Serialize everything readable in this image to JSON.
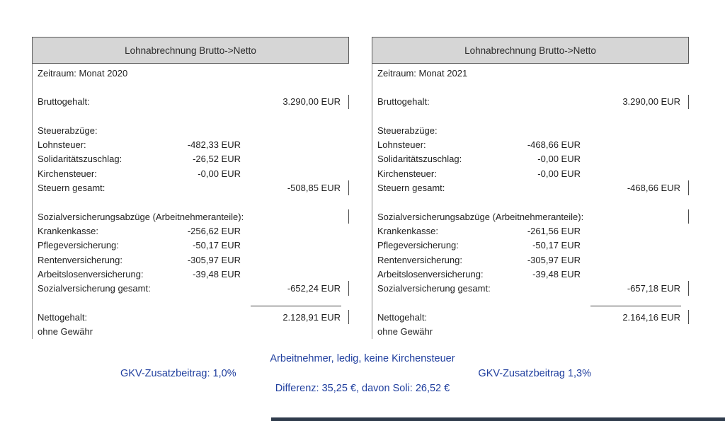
{
  "colors": {
    "accent_blue": "#1f3e9e",
    "header_fill": "#d6d6d6"
  },
  "panels": [
    {
      "title": "Lohnabrechnung Brutto->Netto",
      "rows": [
        {
          "label": "Zeitraum: Monat 2020"
        },
        {},
        {
          "label": "Bruttogehalt:",
          "right": "3.290,00 EUR",
          "tick": true
        },
        {},
        {
          "label": "Steuerabzüge:"
        },
        {
          "label": "Lohnsteuer:",
          "mid": "-482,33 EUR"
        },
        {
          "label": "Solidaritätszuschlag:",
          "mid": "-26,52 EUR"
        },
        {
          "label": "Kirchensteuer:",
          "mid": "-0,00 EUR"
        },
        {
          "label": "Steuern gesamt:",
          "right": "-508,85 EUR",
          "tick": true
        },
        {},
        {
          "label": "Sozialversicherungsabzüge (Arbeitnehmeranteile):",
          "tick": true
        },
        {
          "label": "Krankenkasse:",
          "mid": "-256,62 EUR"
        },
        {
          "label": "Pflegeversicherung:",
          "mid": "-50,17 EUR"
        },
        {
          "label": "Rentenversicherung:",
          "mid": "-305,97 EUR"
        },
        {
          "label": "Arbeitslosenversicherung:",
          "mid": "-39,48 EUR"
        },
        {
          "label": "Sozialversicherung gesamt:",
          "right": "-652,24 EUR",
          "tick": true
        },
        {
          "rule": true
        },
        {
          "label": "Nettogehalt:",
          "right": "2.128,91 EUR",
          "tick": true
        },
        {
          "label": "ohne Gewähr"
        }
      ]
    },
    {
      "title": "Lohnabrechnung Brutto->Netto",
      "rows": [
        {
          "label": "Zeitraum: Monat 2021"
        },
        {},
        {
          "label": "Bruttogehalt:",
          "right": "3.290,00 EUR",
          "tick": true
        },
        {},
        {
          "label": "Steuerabzüge:"
        },
        {
          "label": "Lohnsteuer:",
          "mid": "-468,66 EUR"
        },
        {
          "label": "Solidaritätszuschlag:",
          "mid": "-0,00 EUR"
        },
        {
          "label": "Kirchensteuer:",
          "mid": "-0,00 EUR"
        },
        {
          "label": "Steuern gesamt:",
          "right": "-468,66 EUR",
          "tick": true
        },
        {},
        {
          "label": "Sozialversicherungsabzüge (Arbeitnehmeranteile):",
          "tick": true
        },
        {
          "label": "Krankenkasse:",
          "mid": "-261,56 EUR"
        },
        {
          "label": "Pflegeversicherung:",
          "mid": "-50,17 EUR"
        },
        {
          "label": "Rentenversicherung:",
          "mid": "-305,97 EUR"
        },
        {
          "label": "Arbeitslosenversicherung:",
          "mid": "-39,48 EUR"
        },
        {
          "label": "Sozialversicherung gesamt:",
          "right": "-657,18 EUR",
          "tick": true
        },
        {
          "rule": true
        },
        {
          "label": "Nettogehalt:",
          "right": "2.164,16 EUR",
          "tick": true
        },
        {
          "label": "ohne Gewähr"
        }
      ]
    }
  ],
  "footer": {
    "line1": "Arbeitnehmer, ledig, keine Kirchensteuer",
    "gkv_left": "GKV-Zusatzbeitrag: 1,0%",
    "gkv_right": "GKV-Zusatzbeitrag 1,3%",
    "line3": "Differenz: 35,25 €, davon Soli: 26,52 €"
  }
}
